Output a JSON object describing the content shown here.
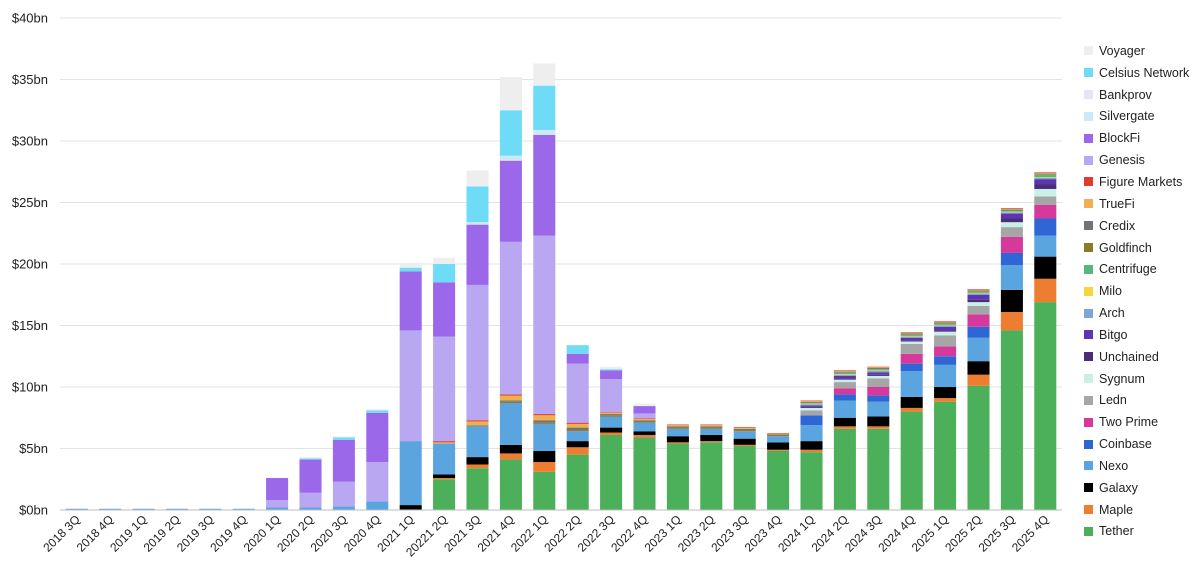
{
  "chart_data": {
    "type": "bar",
    "stacked": true,
    "title": "",
    "xlabel": "",
    "ylabel": "",
    "ylim": [
      0,
      40
    ],
    "yticks": [
      0,
      5,
      10,
      15,
      20,
      25,
      30,
      35,
      40
    ],
    "ytick_labels": [
      "$0bn",
      "$5bn",
      "$10bn",
      "$15bn",
      "$20bn",
      "$25bn",
      "$30bn",
      "$35bn",
      "$40bn"
    ],
    "grid": true,
    "legend_position": "right",
    "categories": [
      "2018 3Q",
      "2018 4Q",
      "2019 1Q",
      "2019 2Q",
      "2019 3Q",
      "2019 4Q",
      "2020 1Q",
      "2020 2Q",
      "2020 3Q",
      "2020 4Q",
      "2021 1Q",
      "20221 2Q",
      "2021 3Q",
      "2021 4Q",
      "2022 1Q",
      "2022 2Q",
      "2022 3Q",
      "2022 4Q",
      "2023 1Q",
      "2023 2Q",
      "2023 3Q",
      "2023 4Q",
      "2024 1Q",
      "2024 2Q",
      "2024 3Q",
      "2024 4Q",
      "2025 1Q",
      "2025 2Q",
      "2025 3Q",
      "2025 4Q"
    ],
    "series": [
      {
        "name": "Tether",
        "color": "#4caf5a",
        "values": [
          0,
          0,
          0,
          0,
          0,
          0,
          0,
          0,
          0,
          0,
          0,
          2.5,
          3.4,
          4.1,
          3.1,
          4.5,
          6.1,
          5.9,
          5.4,
          5.5,
          5.2,
          4.8,
          4.7,
          6.6,
          6.6,
          8.0,
          8.8,
          10.1,
          14.6,
          16.9
        ]
      },
      {
        "name": "Maple",
        "color": "#ed7d31",
        "values": [
          0,
          0,
          0,
          0,
          0,
          0,
          0,
          0,
          0,
          0,
          0,
          0.1,
          0.3,
          0.5,
          0.8,
          0.6,
          0.2,
          0.2,
          0.1,
          0.1,
          0.1,
          0.1,
          0.2,
          0.2,
          0.2,
          0.3,
          0.3,
          0.9,
          1.5,
          1.9
        ]
      },
      {
        "name": "Galaxy",
        "color": "#000000",
        "values": [
          0,
          0,
          0,
          0,
          0,
          0,
          0,
          0,
          0,
          0,
          0.4,
          0.3,
          0.6,
          0.7,
          0.9,
          0.5,
          0.4,
          0.3,
          0.5,
          0.5,
          0.5,
          0.6,
          0.7,
          0.7,
          0.8,
          0.9,
          0.9,
          1.1,
          1.8,
          1.8
        ]
      },
      {
        "name": "Nexo",
        "color": "#5aa5e0",
        "values": [
          0.1,
          0.1,
          0.1,
          0.1,
          0.1,
          0.1,
          0.2,
          0.2,
          0.3,
          0.7,
          5.2,
          2.5,
          2.5,
          3.4,
          2.2,
          0.8,
          0.9,
          0.7,
          0.6,
          0.5,
          0.6,
          0.5,
          1.3,
          1.4,
          1.2,
          2.1,
          1.8,
          1.9,
          2.0,
          1.7
        ]
      },
      {
        "name": "Coinbase",
        "color": "#2f66d6",
        "values": [
          0,
          0,
          0,
          0,
          0,
          0,
          0,
          0,
          0,
          0,
          0,
          0,
          0,
          0,
          0,
          0,
          0,
          0,
          0,
          0,
          0,
          0,
          0.8,
          0.5,
          0.5,
          0.6,
          0.7,
          0.9,
          1.0,
          1.4
        ]
      },
      {
        "name": "Two Prime",
        "color": "#d6399c",
        "values": [
          0,
          0,
          0,
          0,
          0,
          0,
          0,
          0,
          0,
          0,
          0,
          0,
          0,
          0,
          0,
          0,
          0,
          0,
          0,
          0,
          0,
          0,
          0,
          0.5,
          0.7,
          0.8,
          0.8,
          1.0,
          1.3,
          1.1
        ]
      },
      {
        "name": "Ledn",
        "color": "#a6a6a6",
        "values": [
          0,
          0,
          0,
          0,
          0,
          0,
          0,
          0,
          0,
          0,
          0,
          0,
          0,
          0,
          0,
          0,
          0,
          0,
          0,
          0,
          0,
          0,
          0.4,
          0.5,
          0.7,
          0.8,
          0.9,
          0.7,
          0.8,
          0.7
        ]
      },
      {
        "name": "Sygnum",
        "color": "#c9f0e6",
        "values": [
          0,
          0,
          0,
          0,
          0,
          0,
          0,
          0,
          0,
          0,
          0,
          0,
          0,
          0,
          0,
          0,
          0,
          0,
          0,
          0,
          0,
          0,
          0.2,
          0.2,
          0.2,
          0.2,
          0.3,
          0.3,
          0.4,
          0.6
        ]
      },
      {
        "name": "Unchained",
        "color": "#4a2e7a",
        "values": [
          0,
          0,
          0,
          0,
          0,
          0,
          0,
          0,
          0,
          0,
          0,
          0,
          0,
          0,
          0,
          0,
          0,
          0,
          0,
          0,
          0,
          0,
          0.1,
          0.1,
          0.1,
          0.1,
          0.1,
          0.2,
          0.3,
          0.4
        ]
      },
      {
        "name": "Bitgo",
        "color": "#5e35b1",
        "values": [
          0,
          0,
          0,
          0,
          0,
          0,
          0,
          0,
          0,
          0,
          0,
          0,
          0,
          0,
          0,
          0,
          0,
          0,
          0,
          0,
          0,
          0,
          0.1,
          0.2,
          0.2,
          0.2,
          0.3,
          0.4,
          0.4,
          0.4
        ]
      },
      {
        "name": "Arch",
        "color": "#7ca6d8",
        "values": [
          0,
          0,
          0,
          0,
          0,
          0,
          0,
          0,
          0,
          0,
          0,
          0,
          0,
          0,
          0,
          0,
          0,
          0,
          0,
          0,
          0,
          0,
          0.1,
          0.1,
          0.1,
          0.1,
          0.1,
          0.1,
          0.1,
          0.1
        ]
      },
      {
        "name": "Milo",
        "color": "#f2d83a",
        "values": [
          0,
          0,
          0,
          0,
          0,
          0,
          0,
          0,
          0,
          0,
          0,
          0,
          0,
          0,
          0,
          0,
          0,
          0,
          0,
          0,
          0,
          0,
          0.05,
          0.05,
          0.05,
          0.05,
          0.05,
          0.05,
          0.05,
          0.05
        ]
      },
      {
        "name": "Centrifuge",
        "color": "#56b881",
        "values": [
          0,
          0,
          0,
          0,
          0,
          0,
          0,
          0,
          0,
          0,
          0,
          0,
          0,
          0,
          0,
          0,
          0,
          0,
          0,
          0,
          0,
          0,
          0.05,
          0.1,
          0.1,
          0.1,
          0.1,
          0.1,
          0.1,
          0.2
        ]
      },
      {
        "name": "Goldfinch",
        "color": "#8c7a2b",
        "values": [
          0,
          0,
          0,
          0,
          0,
          0,
          0,
          0,
          0,
          0,
          0,
          0,
          0.05,
          0.1,
          0.1,
          0.1,
          0.1,
          0.1,
          0.1,
          0.1,
          0.1,
          0.1,
          0.05,
          0.05,
          0.05,
          0.05,
          0.05,
          0.05,
          0.05,
          0.05
        ]
      },
      {
        "name": "Credix",
        "color": "#737373",
        "values": [
          0,
          0,
          0,
          0,
          0,
          0,
          0,
          0,
          0,
          0,
          0,
          0,
          0.05,
          0.1,
          0.2,
          0.2,
          0.1,
          0.1,
          0.1,
          0.1,
          0.1,
          0.05,
          0.05,
          0.05,
          0.05,
          0.05,
          0.05,
          0.05,
          0.05,
          0.05
        ]
      },
      {
        "name": "TrueFi",
        "color": "#f0b04f",
        "values": [
          0,
          0,
          0,
          0,
          0,
          0,
          0,
          0,
          0,
          0,
          0,
          0.1,
          0.3,
          0.4,
          0.4,
          0.3,
          0.1,
          0.1,
          0.1,
          0.1,
          0.1,
          0.05,
          0.05,
          0.05,
          0.05,
          0.05,
          0.05,
          0.05,
          0.05,
          0.05
        ]
      },
      {
        "name": "Figure Markets",
        "color": "#e03c2c",
        "values": [
          0,
          0,
          0,
          0,
          0,
          0,
          0,
          0,
          0,
          0,
          0,
          0.1,
          0.1,
          0.1,
          0.1,
          0.1,
          0.05,
          0.05,
          0.05,
          0.05,
          0.05,
          0.05,
          0.05,
          0.05,
          0.05,
          0.05,
          0.05,
          0.05,
          0.05,
          0.05
        ]
      },
      {
        "name": "Genesis",
        "color": "#baa7f2",
        "values": [
          0,
          0,
          0,
          0,
          0,
          0,
          0.6,
          1.2,
          2.0,
          3.2,
          9.0,
          8.5,
          11.0,
          12.4,
          14.5,
          4.8,
          2.7,
          0.4,
          0,
          0,
          0,
          0,
          0,
          0,
          0,
          0,
          0,
          0,
          0,
          0
        ]
      },
      {
        "name": "BlockFi",
        "color": "#9b68ea",
        "values": [
          0,
          0,
          0,
          0,
          0,
          0,
          1.8,
          2.7,
          3.4,
          4.0,
          4.8,
          4.4,
          4.9,
          6.6,
          8.2,
          0.8,
          0.7,
          0.6,
          0,
          0,
          0,
          0,
          0,
          0,
          0,
          0,
          0,
          0,
          0,
          0
        ]
      },
      {
        "name": "Silvergate",
        "color": "#cfe8f7",
        "values": [
          0,
          0,
          0,
          0,
          0,
          0,
          0,
          0,
          0,
          0,
          0,
          0,
          0.2,
          0.4,
          0.4,
          0,
          0,
          0,
          0,
          0,
          0,
          0,
          0,
          0,
          0,
          0,
          0,
          0,
          0,
          0
        ]
      },
      {
        "name": "Bankprov",
        "color": "#e3e7f5",
        "values": [
          0,
          0,
          0,
          0,
          0,
          0,
          0,
          0,
          0,
          0,
          0,
          0,
          0,
          0,
          0,
          0,
          0,
          0,
          0,
          0,
          0,
          0,
          0,
          0,
          0,
          0,
          0,
          0,
          0,
          0
        ]
      },
      {
        "name": "Celsius Network",
        "color": "#6fdcf7",
        "values": [
          0,
          0,
          0,
          0,
          0,
          0,
          0,
          0.1,
          0.2,
          0.2,
          0.3,
          1.5,
          2.9,
          3.7,
          3.6,
          0.7,
          0.1,
          0,
          0,
          0,
          0,
          0,
          0,
          0,
          0,
          0,
          0,
          0,
          0,
          0
        ]
      },
      {
        "name": "Voyager",
        "color": "#eeeeee",
        "values": [
          0,
          0,
          0,
          0,
          0,
          0,
          0,
          0.1,
          0.1,
          0.1,
          0.4,
          0.5,
          1.3,
          2.7,
          1.8,
          0,
          0.2,
          0.2,
          0,
          0,
          0,
          0,
          0,
          0,
          0,
          0,
          0,
          0,
          0,
          0
        ]
      }
    ]
  }
}
